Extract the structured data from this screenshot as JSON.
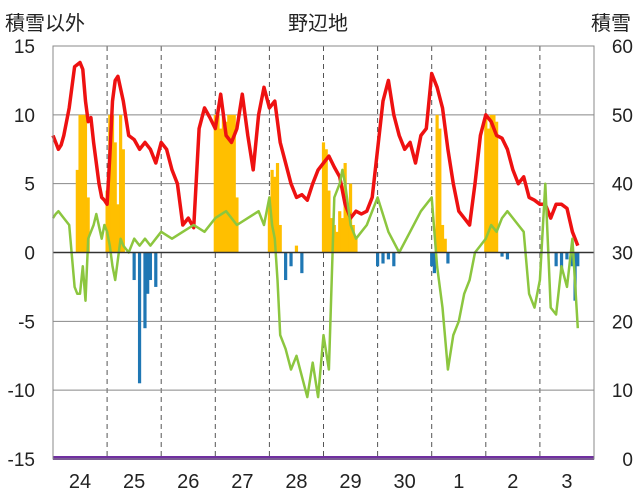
{
  "chart_data": {
    "type": "bar+line",
    "title": "野辺地",
    "left_axis_label": "積雪以外",
    "right_axis_label": "積雪",
    "left_ylim": [
      -15,
      15
    ],
    "left_ticks": [
      "15",
      "10",
      "5",
      "0",
      "-5",
      "-10",
      "-15"
    ],
    "right_ylim": [
      0,
      60
    ],
    "right_ticks": [
      "60",
      "50",
      "40",
      "30",
      "20",
      "10",
      "0"
    ],
    "x_ticks": [
      "24",
      "25",
      "26",
      "27",
      "28",
      "29",
      "30",
      "1",
      "2",
      "3"
    ],
    "grid": "vertical dashed at day boundaries",
    "colors": {
      "temperature": "#ee1111",
      "dewpoint": "#8cc63f",
      "precip_positive": "#ffbf00",
      "precip_negative": "#1f77b4",
      "snow_depth": "#7030a0",
      "grid": "#555555"
    },
    "series": [
      {
        "color_key": "temperature",
        "x": [
          0,
          0.05,
          0.1,
          0.15,
          0.2,
          0.3,
          0.4,
          0.5,
          0.55,
          0.6,
          0.65,
          0.7,
          0.75,
          0.8,
          0.85,
          0.9,
          0.95,
          1.0,
          1.05,
          1.1,
          1.15,
          1.2,
          1.3,
          1.4,
          1.5,
          1.6,
          1.7,
          1.8,
          1.9,
          2.0,
          2.1,
          2.2,
          2.3,
          2.4,
          2.5,
          2.6,
          2.7,
          2.8,
          2.9,
          3.0,
          3.1,
          3.2,
          3.3,
          3.4,
          3.5,
          3.6,
          3.7,
          3.8,
          3.9,
          4.0,
          4.1,
          4.2,
          4.3,
          4.4,
          4.5,
          4.6,
          4.7,
          4.8,
          4.9,
          5.0,
          5.1,
          5.2,
          5.3,
          5.4,
          5.5,
          5.6,
          5.7,
          5.8,
          5.9,
          6.0,
          6.1,
          6.2,
          6.3,
          6.4,
          6.5,
          6.6,
          6.7,
          6.8,
          6.9,
          7.0,
          7.1,
          7.2,
          7.3,
          7.4,
          7.5,
          7.6,
          7.7,
          7.8,
          7.9,
          8.0,
          8.1,
          8.2,
          8.3,
          8.4,
          8.5,
          8.6,
          8.7,
          8.8,
          8.9,
          9.0,
          9.1,
          9.2,
          9.3,
          9.4,
          9.5,
          9.6,
          9.7
        ],
        "y": [
          8.5,
          8,
          7.5,
          7.8,
          8.5,
          10.5,
          13.5,
          13.8,
          13.3,
          11,
          9.5,
          9.8,
          8,
          6.5,
          5,
          4,
          3.8,
          3.5,
          7,
          11,
          12.5,
          12.8,
          11,
          8.5,
          8.2,
          7.5,
          8,
          7.5,
          6.5,
          8,
          7.5,
          6,
          5,
          2,
          2.5,
          1.8,
          9,
          10.5,
          9.8,
          9,
          11.5,
          8.5,
          8,
          9,
          11.5,
          8.5,
          6,
          10,
          12,
          10.5,
          11,
          8,
          6.5,
          5,
          4,
          4.2,
          3.8,
          5,
          6,
          6.5,
          7,
          6.2,
          5.5,
          3.5,
          2.5,
          3,
          2.8,
          3,
          4,
          7.5,
          11,
          12.5,
          10,
          8.5,
          7.5,
          8,
          6.5,
          8.5,
          9,
          13,
          12,
          10.5,
          7.5,
          5,
          3,
          2.5,
          2,
          5,
          8.5,
          10,
          9.5,
          8.5,
          8.3,
          7.5,
          6,
          5,
          5.5,
          4,
          3.8,
          3.5,
          3.5,
          2.5,
          3.5,
          3.5,
          3.2,
          1.5,
          0.5
        ]
      },
      {
        "color_key": "dewpoint",
        "x": [
          0,
          0.05,
          0.1,
          0.2,
          0.3,
          0.4,
          0.45,
          0.5,
          0.55,
          0.6,
          0.65,
          0.7,
          0.75,
          0.8,
          0.9,
          0.95,
          1.0,
          1.05,
          1.1,
          1.15,
          1.2,
          1.25,
          1.3,
          1.4,
          1.5,
          1.6,
          1.7,
          1.8,
          1.9,
          2.0,
          2.2,
          2.4,
          2.6,
          2.8,
          3.0,
          3.2,
          3.4,
          3.6,
          3.8,
          3.9,
          4.0,
          4.05,
          4.1,
          4.15,
          4.2,
          4.3,
          4.4,
          4.5,
          4.6,
          4.7,
          4.8,
          4.9,
          5.0,
          5.1,
          5.2,
          5.3,
          5.35,
          5.4,
          5.5,
          5.6,
          5.7,
          5.8,
          5.9,
          6.0,
          6.2,
          6.4,
          6.6,
          6.8,
          7.0,
          7.1,
          7.2,
          7.3,
          7.4,
          7.5,
          7.6,
          7.7,
          7.8,
          7.9,
          8.0,
          8.1,
          8.2,
          8.3,
          8.4,
          8.5,
          8.6,
          8.7,
          8.8,
          8.9,
          9.0,
          9.1,
          9.2,
          9.3,
          9.4,
          9.5,
          9.6,
          9.7
        ],
        "y": [
          2.5,
          2.8,
          3,
          2.5,
          2,
          -2.5,
          -3,
          -3,
          -1,
          -3.5,
          1,
          1.5,
          2,
          2.8,
          1,
          2,
          1.5,
          0.5,
          -1,
          -2,
          -0.5,
          1,
          0.5,
          0,
          1,
          0.5,
          1,
          0.5,
          1,
          1.5,
          1,
          1.5,
          2,
          1.5,
          2.5,
          3,
          2,
          2.5,
          3,
          2,
          4,
          2,
          1,
          -2,
          -6,
          -7,
          -8.5,
          -7.5,
          -9,
          -10.5,
          -8,
          -10.5,
          -6,
          -8.5,
          4,
          5,
          6,
          5,
          2,
          1,
          1.5,
          2,
          3,
          4,
          1.5,
          0,
          1.5,
          3,
          4,
          -1,
          -4,
          -8.5,
          -6,
          -5,
          -3,
          -2,
          0,
          0.5,
          1,
          2,
          1.5,
          2.5,
          3,
          2.5,
          2,
          1.5,
          -3,
          -4,
          -2,
          5,
          -4,
          -4.5,
          -1,
          -2.5,
          1,
          -5.5
        ]
      },
      {
        "color_key": "snow_depth",
        "y_right": [
          0,
          0,
          0,
          0,
          0,
          0,
          0,
          0,
          0,
          0,
          0
        ]
      }
    ],
    "precip_bars": {
      "x": [
        0.45,
        0.5,
        0.55,
        0.6,
        0.65,
        1.0,
        1.05,
        1.1,
        1.15,
        1.2,
        1.25,
        1.3,
        1.5,
        1.6,
        1.7,
        1.75,
        1.8,
        1.9,
        3.0,
        3.05,
        3.1,
        3.15,
        3.2,
        3.25,
        3.3,
        3.35,
        3.4,
        4.0,
        4.05,
        4.1,
        4.15,
        4.2,
        4.3,
        4.4,
        4.5,
        4.6,
        5.0,
        5.05,
        5.1,
        5.15,
        5.2,
        5.25,
        5.3,
        5.35,
        5.4,
        5.45,
        5.5,
        5.55,
        5.6,
        6.0,
        6.1,
        6.2,
        6.3,
        7.0,
        7.05,
        7.1,
        7.15,
        7.2,
        7.25,
        7.3,
        8.0,
        8.05,
        8.1,
        8.15,
        8.2,
        8.3,
        8.4,
        9.3,
        9.4,
        9.5,
        9.6,
        9.65,
        9.7
      ],
      "values": [
        6,
        10,
        10,
        10,
        4,
        4.5,
        10,
        10,
        8,
        3.5,
        10,
        7.5,
        -2,
        -9.5,
        -5.5,
        -3,
        -2,
        -2.5,
        10,
        10,
        9,
        10,
        9.5,
        10,
        10,
        10,
        4,
        3.8,
        6,
        5.5,
        6.5,
        2,
        -2,
        -1,
        0.5,
        -1.5,
        8,
        7.5,
        4.5,
        2.5,
        2,
        1.5,
        3,
        2.5,
        6.5,
        3,
        5,
        2,
        1,
        -1,
        -0.8,
        -0.5,
        -1,
        -1,
        -1.5,
        10,
        9,
        2,
        1,
        -0.8,
        10,
        9,
        10,
        10,
        9.5,
        -0.3,
        -0.5,
        -1,
        -1.5,
        -0.5,
        -1,
        -3.5,
        -1
      ]
    }
  }
}
